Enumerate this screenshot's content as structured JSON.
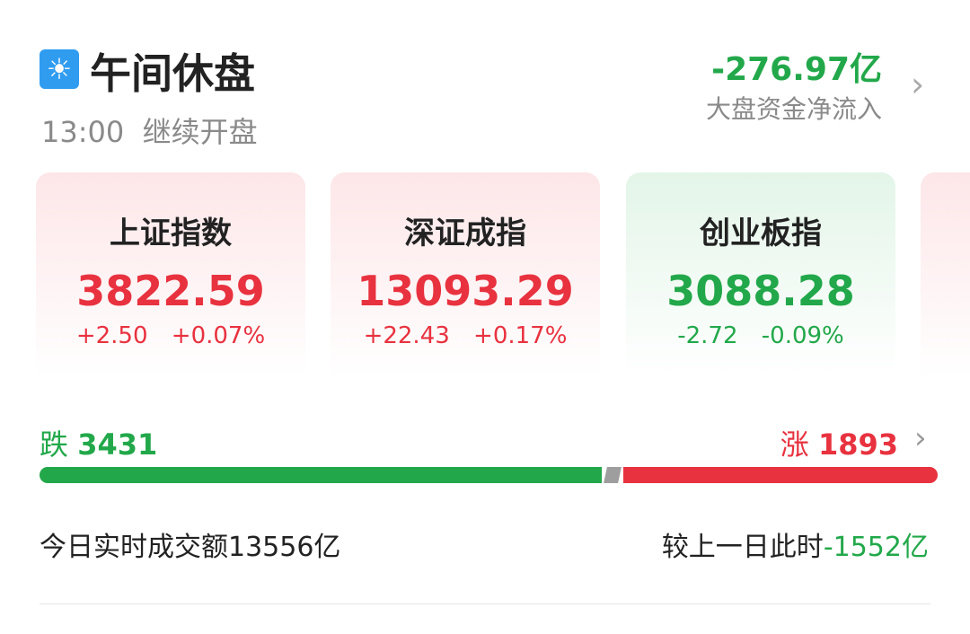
{
  "header": {
    "icon": "sun-icon",
    "title": "午间休盘",
    "time": "13:00",
    "subtitle": "继续开盘",
    "net_flow_value": "-276.97亿",
    "net_flow_label": "大盘资金净流入"
  },
  "indices": [
    {
      "name": "上证指数",
      "value": "3822.59",
      "change": "+2.50",
      "pct": "+0.07%",
      "trend": "up"
    },
    {
      "name": "深证成指",
      "value": "13093.29",
      "change": "+22.43",
      "pct": "+0.17%",
      "trend": "up"
    },
    {
      "name": "创业板指",
      "value": "3088.28",
      "change": "-2.72",
      "pct": "-0.09%",
      "trend": "down"
    }
  ],
  "breadth": {
    "fall_label": "跌",
    "fall_count": "3431",
    "rise_label": "涨",
    "rise_count": "1893",
    "fall_frac": 0.63,
    "flat_frac": 0.02,
    "rise_frac": 0.35
  },
  "turnover": {
    "label": "今日实时成交额",
    "value": "13556亿",
    "compare_label": "较上一日此时",
    "compare_value": "-1552亿"
  },
  "colors": {
    "up": "#e8323f",
    "down": "#22a84a",
    "flat": "#9e9e9e"
  }
}
